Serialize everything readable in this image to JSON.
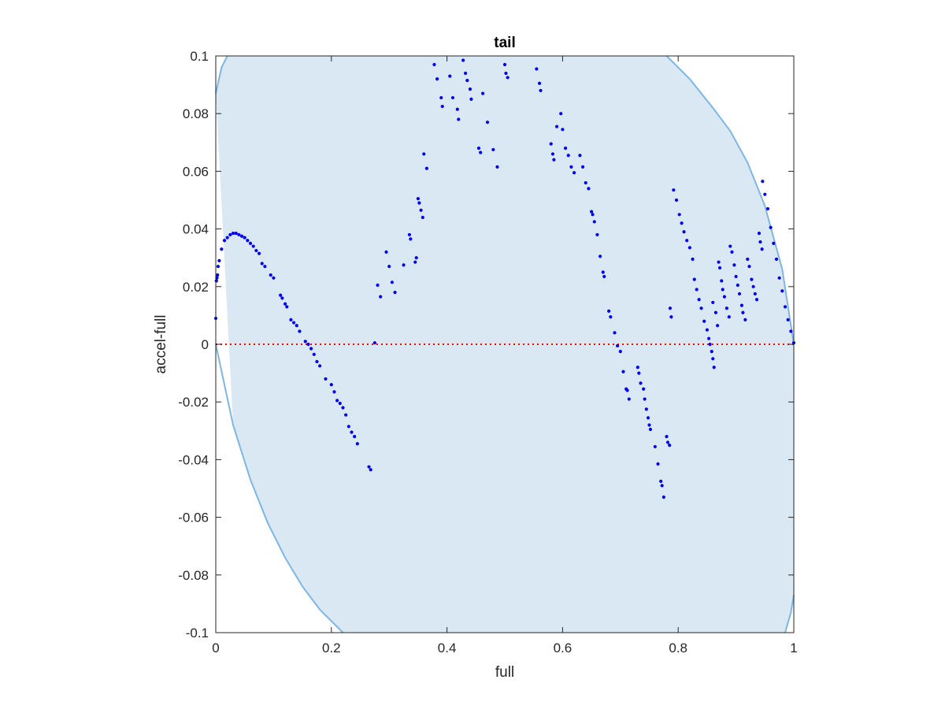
{
  "chart_data": {
    "type": "scatter",
    "title": "tail",
    "xlabel": "full",
    "ylabel": "accel-full",
    "xlim": [
      0,
      1
    ],
    "ylim": [
      -0.1,
      0.1
    ],
    "xticks": [
      0,
      0.2,
      0.4,
      0.6,
      0.8,
      1
    ],
    "xtick_labels": [
      "0",
      "0.2",
      "0.4",
      "0.6",
      "0.8",
      "1"
    ],
    "yticks": [
      -0.1,
      -0.08,
      -0.06,
      -0.04,
      -0.02,
      0,
      0.02,
      0.04,
      0.06,
      0.08,
      0.1
    ],
    "ytick_labels": [
      "-0.1",
      "-0.08",
      "-0.06",
      "-0.04",
      "-0.02",
      "0",
      "0.02",
      "0.04",
      "0.06",
      "0.08",
      "0.1"
    ],
    "grid": false,
    "reference_line": {
      "y": 0,
      "style": "dotted",
      "color": "#ff0000"
    },
    "shaded_region": {
      "fill_color": "#dae8f4",
      "edge_color": "#7fb6e0",
      "lower_boundary": {
        "x": [
          0,
          0.03,
          0.06,
          0.09,
          0.12,
          0.15,
          0.18,
          0.22
        ],
        "y": [
          0,
          -0.028,
          -0.047,
          -0.062,
          -0.074,
          -0.084,
          -0.092,
          -0.1
        ]
      },
      "upper_boundary": {
        "x": [
          0,
          0.01,
          0.02
        ],
        "y": [
          0.087,
          0.096,
          0.1
        ]
      },
      "upper_right_boundary": {
        "x": [
          0.78,
          0.82,
          0.86,
          0.89,
          0.92,
          0.95,
          0.98,
          1.0
        ],
        "y": [
          0.1,
          0.092,
          0.082,
          0.074,
          0.063,
          0.048,
          0.026,
          0
        ]
      },
      "lower_right_boundary": {
        "x": [
          0.985,
          0.995,
          1.0
        ],
        "y": [
          -0.1,
          -0.093,
          -0.087
        ]
      }
    },
    "series": [
      {
        "color": "#0000ee",
        "marker": "dot",
        "points": [
          [
            0.0,
            0.009
          ],
          [
            0.001,
            0.022
          ],
          [
            0.002,
            0.023
          ],
          [
            0.003,
            0.024
          ],
          [
            0.004,
            0.027
          ],
          [
            0.006,
            0.029
          ],
          [
            0.01,
            0.033
          ],
          [
            0.015,
            0.036
          ],
          [
            0.02,
            0.037
          ],
          [
            0.025,
            0.038
          ],
          [
            0.03,
            0.0385
          ],
          [
            0.035,
            0.0385
          ],
          [
            0.04,
            0.038
          ],
          [
            0.045,
            0.0375
          ],
          [
            0.05,
            0.037
          ],
          [
            0.055,
            0.036
          ],
          [
            0.06,
            0.035
          ],
          [
            0.065,
            0.034
          ],
          [
            0.07,
            0.0325
          ],
          [
            0.075,
            0.0315
          ],
          [
            0.08,
            0.028
          ],
          [
            0.085,
            0.027
          ],
          [
            0.095,
            0.024
          ],
          [
            0.1,
            0.023
          ],
          [
            0.112,
            0.017
          ],
          [
            0.115,
            0.016
          ],
          [
            0.12,
            0.014
          ],
          [
            0.123,
            0.013
          ],
          [
            0.13,
            0.0085
          ],
          [
            0.135,
            0.0075
          ],
          [
            0.14,
            0.0065
          ],
          [
            0.145,
            0.0045
          ],
          [
            0.155,
            0.001
          ],
          [
            0.16,
            0.0
          ],
          [
            0.165,
            -0.0015
          ],
          [
            0.17,
            -0.0035
          ],
          [
            0.175,
            -0.006
          ],
          [
            0.18,
            -0.0075
          ],
          [
            0.19,
            -0.012
          ],
          [
            0.2,
            -0.014
          ],
          [
            0.205,
            -0.0165
          ],
          [
            0.21,
            -0.0195
          ],
          [
            0.215,
            -0.0205
          ],
          [
            0.22,
            -0.022
          ],
          [
            0.225,
            -0.0245
          ],
          [
            0.23,
            -0.0285
          ],
          [
            0.235,
            -0.0305
          ],
          [
            0.24,
            -0.032
          ],
          [
            0.245,
            -0.0345
          ],
          [
            0.265,
            -0.0425
          ],
          [
            0.268,
            -0.0435
          ],
          [
            0.275,
            0.0005
          ],
          [
            0.28,
            0.0205
          ],
          [
            0.285,
            0.0165
          ],
          [
            0.295,
            0.032
          ],
          [
            0.3,
            0.027
          ],
          [
            0.305,
            0.0215
          ],
          [
            0.31,
            0.018
          ],
          [
            0.325,
            0.0275
          ],
          [
            0.335,
            0.038
          ],
          [
            0.337,
            0.0365
          ],
          [
            0.345,
            0.0285
          ],
          [
            0.347,
            0.03
          ],
          [
            0.35,
            0.0505
          ],
          [
            0.352,
            0.049
          ],
          [
            0.355,
            0.0465
          ],
          [
            0.358,
            0.044
          ],
          [
            0.36,
            0.066
          ],
          [
            0.365,
            0.061
          ],
          [
            0.378,
            0.097
          ],
          [
            0.383,
            0.092
          ],
          [
            0.39,
            0.0855
          ],
          [
            0.392,
            0.0825
          ],
          [
            0.405,
            0.093
          ],
          [
            0.41,
            0.0855
          ],
          [
            0.418,
            0.0815
          ],
          [
            0.42,
            0.078
          ],
          [
            0.428,
            0.0985
          ],
          [
            0.432,
            0.094
          ],
          [
            0.435,
            0.0915
          ],
          [
            0.44,
            0.0885
          ],
          [
            0.442,
            0.085
          ],
          [
            0.455,
            0.068
          ],
          [
            0.458,
            0.0665
          ],
          [
            0.462,
            0.087
          ],
          [
            0.47,
            0.077
          ],
          [
            0.48,
            0.0675
          ],
          [
            0.487,
            0.0615
          ],
          [
            0.5,
            0.097
          ],
          [
            0.502,
            0.094
          ],
          [
            0.505,
            0.0925
          ],
          [
            0.555,
            0.0955
          ],
          [
            0.56,
            0.0905
          ],
          [
            0.562,
            0.088
          ],
          [
            0.58,
            0.0695
          ],
          [
            0.583,
            0.066
          ],
          [
            0.585,
            0.064
          ],
          [
            0.59,
            0.0755
          ],
          [
            0.597,
            0.08
          ],
          [
            0.6,
            0.0745
          ],
          [
            0.605,
            0.068
          ],
          [
            0.61,
            0.0655
          ],
          [
            0.615,
            0.0615
          ],
          [
            0.62,
            0.0595
          ],
          [
            0.63,
            0.0655
          ],
          [
            0.635,
            0.0615
          ],
          [
            0.64,
            0.056
          ],
          [
            0.645,
            0.054
          ],
          [
            0.65,
            0.046
          ],
          [
            0.652,
            0.045
          ],
          [
            0.655,
            0.0425
          ],
          [
            0.66,
            0.038
          ],
          [
            0.665,
            0.0305
          ],
          [
            0.67,
            0.025
          ],
          [
            0.672,
            0.0235
          ],
          [
            0.68,
            0.0115
          ],
          [
            0.683,
            0.0095
          ],
          [
            0.69,
            0.004
          ],
          [
            0.695,
            -0.0005
          ],
          [
            0.7,
            -0.0025
          ],
          [
            0.705,
            -0.0095
          ],
          [
            0.71,
            -0.0155
          ],
          [
            0.712,
            -0.016
          ],
          [
            0.715,
            -0.019
          ],
          [
            0.73,
            -0.008
          ],
          [
            0.732,
            -0.01
          ],
          [
            0.735,
            -0.0135
          ],
          [
            0.74,
            -0.0155
          ],
          [
            0.742,
            -0.019
          ],
          [
            0.745,
            -0.0225
          ],
          [
            0.748,
            -0.0255
          ],
          [
            0.75,
            -0.028
          ],
          [
            0.752,
            -0.0295
          ],
          [
            0.76,
            -0.0355
          ],
          [
            0.765,
            -0.0415
          ],
          [
            0.77,
            -0.0475
          ],
          [
            0.772,
            -0.049
          ],
          [
            0.775,
            -0.053
          ],
          [
            0.78,
            -0.032
          ],
          [
            0.782,
            -0.034
          ],
          [
            0.785,
            -0.035
          ],
          [
            0.786,
            0.0125
          ],
          [
            0.788,
            0.0095
          ],
          [
            0.792,
            0.0535
          ],
          [
            0.797,
            0.05
          ],
          [
            0.802,
            0.045
          ],
          [
            0.806,
            0.042
          ],
          [
            0.81,
            0.039
          ],
          [
            0.815,
            0.036
          ],
          [
            0.82,
            0.0335
          ],
          [
            0.825,
            0.0295
          ],
          [
            0.828,
            0.0225
          ],
          [
            0.832,
            0.019
          ],
          [
            0.836,
            0.0155
          ],
          [
            0.84,
            0.0125
          ],
          [
            0.845,
            0.008
          ],
          [
            0.85,
            0.005
          ],
          [
            0.853,
            0.002
          ],
          [
            0.855,
            0.0
          ],
          [
            0.858,
            -0.0025
          ],
          [
            0.86,
            -0.005
          ],
          [
            0.862,
            -0.008
          ],
          [
            0.86,
            0.0145
          ],
          [
            0.865,
            0.011
          ],
          [
            0.868,
            0.0065
          ],
          [
            0.87,
            0.0285
          ],
          [
            0.872,
            0.0265
          ],
          [
            0.875,
            0.022
          ],
          [
            0.877,
            0.019
          ],
          [
            0.88,
            0.0165
          ],
          [
            0.884,
            0.0125
          ],
          [
            0.888,
            0.0095
          ],
          [
            0.89,
            0.034
          ],
          [
            0.893,
            0.032
          ],
          [
            0.897,
            0.0275
          ],
          [
            0.9,
            0.0235
          ],
          [
            0.903,
            0.0205
          ],
          [
            0.906,
            0.0175
          ],
          [
            0.91,
            0.0135
          ],
          [
            0.912,
            0.011
          ],
          [
            0.916,
            0.0085
          ],
          [
            0.92,
            0.0295
          ],
          [
            0.923,
            0.027
          ],
          [
            0.927,
            0.0225
          ],
          [
            0.93,
            0.02
          ],
          [
            0.933,
            0.0175
          ],
          [
            0.936,
            0.0155
          ],
          [
            0.94,
            0.0385
          ],
          [
            0.942,
            0.0355
          ],
          [
            0.945,
            0.033
          ],
          [
            0.946,
            0.0565
          ],
          [
            0.95,
            0.052
          ],
          [
            0.955,
            0.047
          ],
          [
            0.96,
            0.0405
          ],
          [
            0.965,
            0.035
          ],
          [
            0.97,
            0.0295
          ],
          [
            0.975,
            0.023
          ],
          [
            0.98,
            0.0185
          ],
          [
            0.985,
            0.013
          ],
          [
            0.99,
            0.0085
          ],
          [
            0.995,
            0.0045
          ],
          [
            1.0,
            0.0005
          ]
        ]
      }
    ]
  }
}
